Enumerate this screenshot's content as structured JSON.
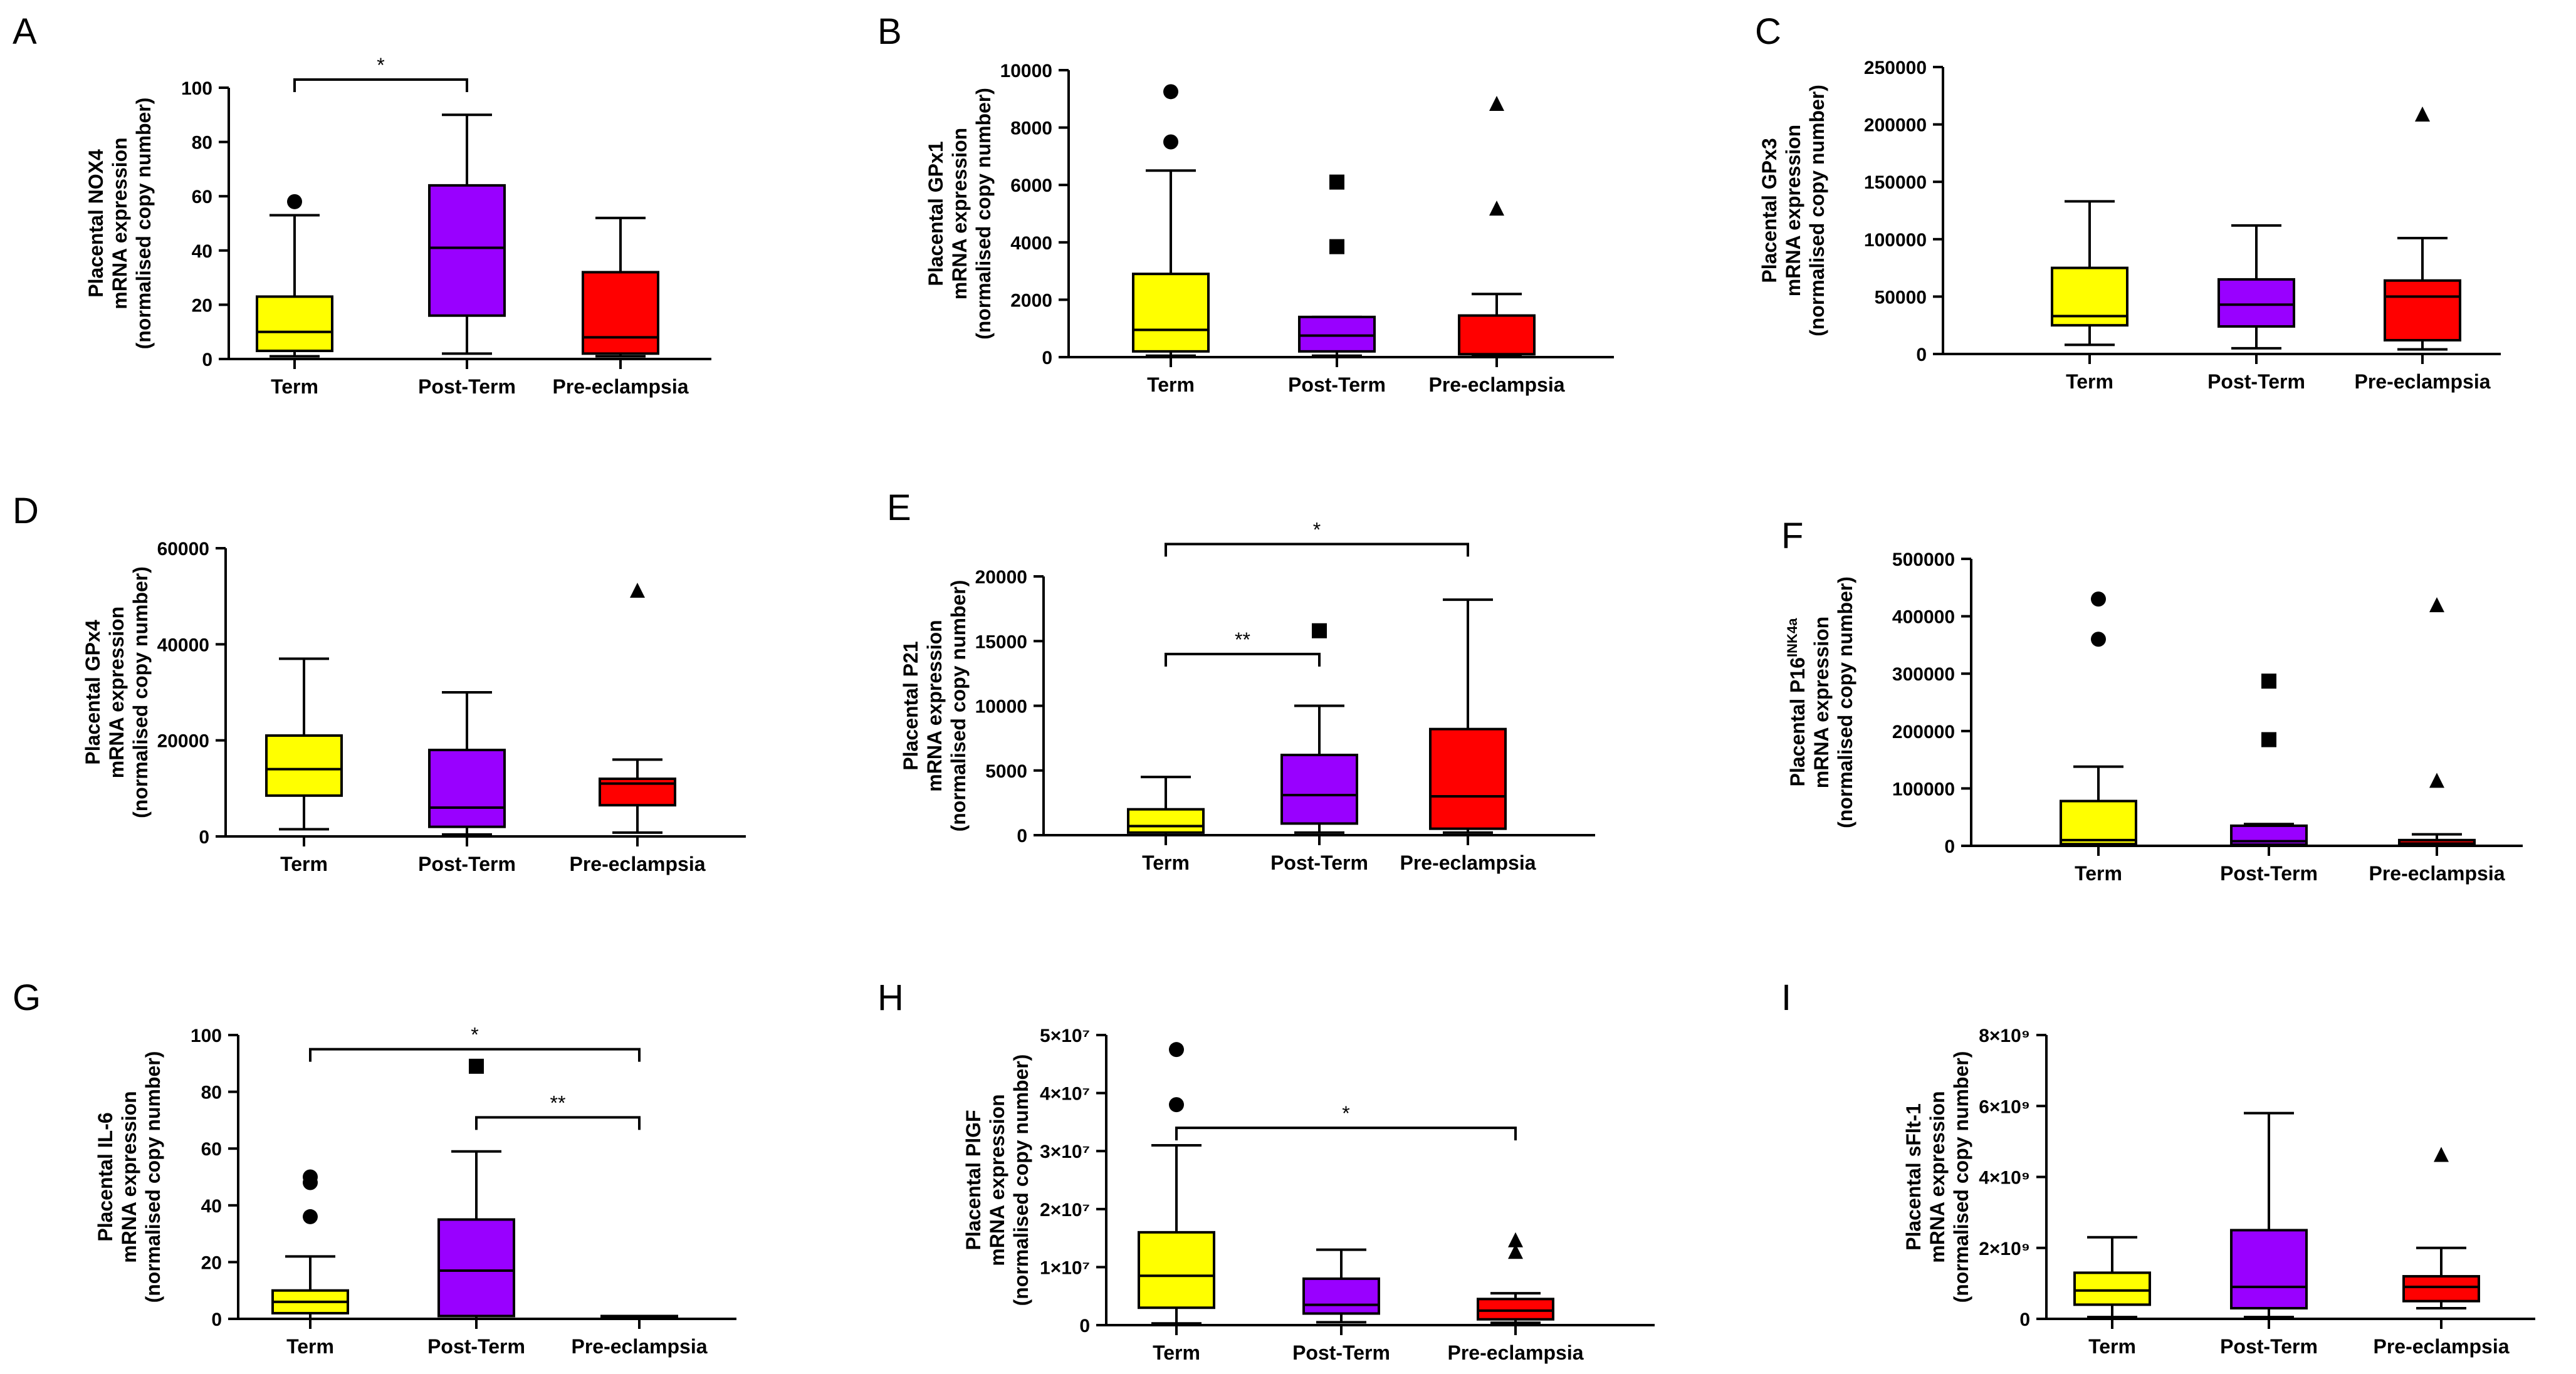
{
  "figure": {
    "colors": {
      "Term": "#ffff00",
      "Post-Term": "#9900ff",
      "Pre-eclampsia": "#ff0000",
      "axis": "#000000"
    },
    "categories": [
      "Term",
      "Post-Term",
      "Pre-eclampsia"
    ]
  },
  "chart_data": [
    {
      "panel": "A",
      "type": "boxplot",
      "ylabel": [
        "Placental NOX4",
        "mRNA expression",
        "(normalised copy number)"
      ],
      "yticks": [
        "0",
        "20",
        "40",
        "60",
        "80",
        "100"
      ],
      "ytick_values": [
        0,
        20,
        40,
        60,
        80,
        100
      ],
      "ylim": [
        0,
        100
      ],
      "categories": [
        "Term",
        "Post-Term",
        "Pre-eclampsia"
      ],
      "boxes": [
        {
          "min": 1,
          "q1": 3,
          "median": 10,
          "q3": 23,
          "max": 53,
          "outliers": [
            58
          ]
        },
        {
          "min": 2,
          "q1": 16,
          "median": 41,
          "q3": 64,
          "max": 90,
          "outliers": []
        },
        {
          "min": 1,
          "q1": 2,
          "median": 8,
          "q3": 32,
          "max": 52,
          "outliers": []
        }
      ],
      "outlier_marker": [
        "circle",
        "square",
        "triangle"
      ],
      "significance": [
        {
          "from": 0,
          "to": 1,
          "y": 103,
          "label": "*"
        }
      ]
    },
    {
      "panel": "B",
      "type": "boxplot",
      "ylabel": [
        "Placental GPx1",
        "mRNA expression",
        "(normalised copy number)"
      ],
      "yticks": [
        "0",
        "2000",
        "4000",
        "6000",
        "8000",
        "10000"
      ],
      "ytick_values": [
        0,
        2000,
        4000,
        6000,
        8000,
        10000
      ],
      "ylim": [
        0,
        10000
      ],
      "categories": [
        "Term",
        "Post-Term",
        "Pre-eclampsia"
      ],
      "boxes": [
        {
          "min": 50,
          "q1": 200,
          "median": 950,
          "q3": 2900,
          "max": 6500,
          "outliers": [
            7500,
            9250
          ]
        },
        {
          "min": 50,
          "q1": 200,
          "median": 750,
          "q3": 1400,
          "max": 1400,
          "outliers": [
            3850,
            6100
          ]
        },
        {
          "min": 30,
          "q1": 100,
          "median": 100,
          "q3": 1450,
          "max": 2200,
          "outliers": [
            5150,
            8800
          ]
        }
      ],
      "outlier_marker": [
        "circle",
        "square",
        "triangle"
      ],
      "significance": []
    },
    {
      "panel": "C",
      "type": "boxplot",
      "ylabel": [
        "Placental GPx3",
        "mRNA expression",
        "(normalised copy number)"
      ],
      "yticks": [
        "0",
        "50000",
        "100000",
        "150000",
        "200000",
        "250000"
      ],
      "ytick_values": [
        0,
        50000,
        100000,
        150000,
        200000,
        250000
      ],
      "ylim": [
        0,
        250000
      ],
      "categories": [
        "Term",
        "Post-Term",
        "Pre-eclampsia"
      ],
      "boxes": [
        {
          "min": 8000,
          "q1": 25000,
          "median": 33000,
          "q3": 75000,
          "max": 133000,
          "outliers": []
        },
        {
          "min": 5000,
          "q1": 24000,
          "median": 43000,
          "q3": 65000,
          "max": 112000,
          "outliers": []
        },
        {
          "min": 4000,
          "q1": 12000,
          "median": 50000,
          "q3": 64000,
          "max": 101000,
          "outliers": [
            208000
          ]
        }
      ],
      "outlier_marker": [
        "circle",
        "square",
        "triangle"
      ],
      "significance": []
    },
    {
      "panel": "D",
      "type": "boxplot",
      "ylabel": [
        "Placental GPx4",
        "mRNA expression",
        "(normalised copy number)"
      ],
      "yticks": [
        "0",
        "20000",
        "40000",
        "60000"
      ],
      "ytick_values": [
        0,
        20000,
        40000,
        60000
      ],
      "ylim": [
        0,
        60000
      ],
      "categories": [
        "Term",
        "Post-Term",
        "Pre-eclampsia"
      ],
      "boxes": [
        {
          "min": 1500,
          "q1": 8500,
          "median": 14000,
          "q3": 21000,
          "max": 37000,
          "outliers": []
        },
        {
          "min": 400,
          "q1": 2000,
          "median": 6000,
          "q3": 18000,
          "max": 30000,
          "outliers": []
        },
        {
          "min": 800,
          "q1": 6500,
          "median": 11000,
          "q3": 12000,
          "max": 16000,
          "outliers": [
            51000
          ]
        }
      ],
      "outlier_marker": [
        "circle",
        "square",
        "triangle"
      ],
      "significance": []
    },
    {
      "panel": "E",
      "type": "boxplot",
      "ylabel": [
        "Placental P21",
        "mRNA expression",
        "(normalised copy number)"
      ],
      "yticks": [
        "0",
        "5000",
        "10000",
        "15000",
        "20000"
      ],
      "ytick_values": [
        0,
        5000,
        10000,
        15000,
        20000
      ],
      "ylim": [
        0,
        20000
      ],
      "categories": [
        "Term",
        "Post-Term",
        "Pre-eclampsia"
      ],
      "boxes": [
        {
          "min": 0,
          "q1": 200,
          "median": 700,
          "q3": 2000,
          "max": 4500,
          "outliers": []
        },
        {
          "min": 200,
          "q1": 900,
          "median": 3100,
          "q3": 6200,
          "max": 10000,
          "outliers": [
            15800
          ]
        },
        {
          "min": 200,
          "q1": 500,
          "median": 3000,
          "q3": 8200,
          "max": 18200,
          "outliers": []
        }
      ],
      "outlier_marker": [
        "circle",
        "square",
        "triangle"
      ],
      "significance": [
        {
          "from": 0,
          "to": 1,
          "y": 14000,
          "label": "**"
        },
        {
          "from": 0,
          "to": 2,
          "y": 22500,
          "label": "*"
        }
      ]
    },
    {
      "panel": "F",
      "type": "boxplot",
      "ylabel": [
        "Placental P16",
        "mRNA expression",
        "(normalised copy number)"
      ],
      "ylabel_superscript": "INK4a",
      "yticks": [
        "0",
        "100000",
        "200000",
        "300000",
        "400000",
        "500000"
      ],
      "ytick_values": [
        0,
        100000,
        200000,
        300000,
        400000,
        500000
      ],
      "ylim": [
        0,
        500000
      ],
      "categories": [
        "Term",
        "Post-Term",
        "Pre-eclampsia"
      ],
      "boxes": [
        {
          "min": 0,
          "q1": 3000,
          "median": 10000,
          "q3": 78000,
          "max": 138000,
          "outliers": [
            360000,
            430000
          ]
        },
        {
          "min": 0,
          "q1": 2000,
          "median": 8000,
          "q3": 35000,
          "max": 38000,
          "outliers": [
            185000,
            287000
          ]
        },
        {
          "min": 0,
          "q1": 1000,
          "median": 4000,
          "q3": 10000,
          "max": 20000,
          "outliers": [
            112000,
            418000
          ]
        }
      ],
      "outlier_marker": [
        "circle",
        "square",
        "triangle"
      ],
      "significance": []
    },
    {
      "panel": "G",
      "type": "boxplot",
      "ylabel": [
        "Placental IL-6",
        "mRNA expression",
        "(normalised copy number)"
      ],
      "yticks": [
        "0",
        "20",
        "40",
        "60",
        "80",
        "100"
      ],
      "ytick_values": [
        0,
        20,
        40,
        60,
        80,
        100
      ],
      "ylim": [
        0,
        100
      ],
      "categories": [
        "Term",
        "Post-Term",
        "Pre-eclampsia"
      ],
      "boxes": [
        {
          "min": 0,
          "q1": 2,
          "median": 6,
          "q3": 10,
          "max": 22,
          "outliers": [
            36,
            48,
            50
          ]
        },
        {
          "min": 0,
          "q1": 1,
          "median": 17,
          "q3": 35,
          "max": 59,
          "outliers": [
            89
          ]
        },
        {
          "min": 0,
          "q1": 0.2,
          "median": 0.5,
          "q3": 1,
          "max": 1,
          "outliers": []
        }
      ],
      "outlier_marker": [
        "circle",
        "square",
        "triangle"
      ],
      "significance": [
        {
          "from": 0,
          "to": 2,
          "y": 95,
          "label": "*"
        },
        {
          "from": 1,
          "to": 2,
          "y": 71,
          "label": "**"
        }
      ]
    },
    {
      "panel": "H",
      "type": "boxplot",
      "ylabel": [
        "Placental PlGF",
        "mRNA expression",
        "(normalised copy number)"
      ],
      "yticks": [
        "0",
        "1×10⁷",
        "2×10⁷",
        "3×10⁷",
        "4×10⁷",
        "5×10⁷"
      ],
      "ytick_values": [
        0,
        10000000,
        20000000,
        30000000,
        40000000,
        50000000
      ],
      "ylim": [
        0,
        50000000
      ],
      "categories": [
        "Term",
        "Post-Term",
        "Pre-eclampsia"
      ],
      "boxes": [
        {
          "min": 300000,
          "q1": 3000000,
          "median": 8500000,
          "q3": 16000000,
          "max": 31000000,
          "outliers": [
            38000000,
            47500000
          ]
        },
        {
          "min": 500000,
          "q1": 2000000,
          "median": 3500000,
          "q3": 8000000,
          "max": 13000000,
          "outliers": []
        },
        {
          "min": 400000,
          "q1": 1000000,
          "median": 2500000,
          "q3": 4500000,
          "max": 5500000,
          "outliers": [
            12500000,
            14500000
          ]
        }
      ],
      "outlier_marker": [
        "circle",
        "square",
        "triangle"
      ],
      "significance": [
        {
          "from": 0,
          "to": 2,
          "y": 34000000,
          "label": "*"
        }
      ]
    },
    {
      "panel": "I",
      "type": "boxplot",
      "ylabel": [
        "Placental sFlt-1",
        "mRNA expression",
        "(normalised copy number)"
      ],
      "yticks": [
        "0",
        "2×10⁹",
        "4×10⁹",
        "6×10⁹",
        "8×10⁹"
      ],
      "ytick_values": [
        0,
        2000000000,
        4000000000,
        6000000000,
        8000000000
      ],
      "ylim": [
        0,
        8000000000
      ],
      "categories": [
        "Term",
        "Post-Term",
        "Pre-eclampsia"
      ],
      "boxes": [
        {
          "min": 50000000,
          "q1": 400000000,
          "median": 800000000,
          "q3": 1300000000,
          "max": 2300000000,
          "outliers": []
        },
        {
          "min": 50000000,
          "q1": 300000000,
          "median": 900000000,
          "q3": 2500000000,
          "max": 5800000000,
          "outliers": []
        },
        {
          "min": 300000000,
          "q1": 500000000,
          "median": 900000000,
          "q3": 1200000000,
          "max": 2000000000,
          "outliers": [
            4600000000
          ]
        }
      ],
      "outlier_marker": [
        "circle",
        "square",
        "triangle"
      ],
      "significance": []
    }
  ]
}
